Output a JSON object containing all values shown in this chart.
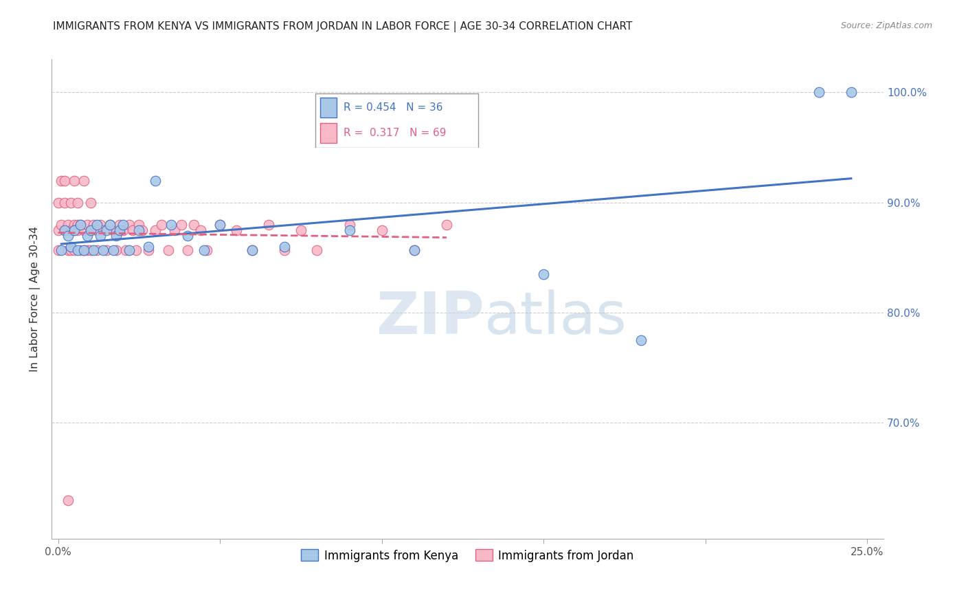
{
  "title": "IMMIGRANTS FROM KENYA VS IMMIGRANTS FROM JORDAN IN LABOR FORCE | AGE 30-34 CORRELATION CHART",
  "source": "Source: ZipAtlas.com",
  "ylabel": "In Labor Force | Age 30-34",
  "ylabel_ticks": [
    "100.0%",
    "90.0%",
    "80.0%",
    "70.0%"
  ],
  "ylabel_tick_values": [
    1.0,
    0.9,
    0.8,
    0.7
  ],
  "xlim": [
    -0.002,
    0.255
  ],
  "ylim": [
    0.595,
    1.03
  ],
  "kenya_color": "#A8C8E8",
  "jordan_color": "#F8B8C8",
  "kenya_edge": "#4472C4",
  "jordan_edge": "#E06080",
  "trend_kenya_color": "#4472C4",
  "trend_jordan_color": "#E06080",
  "kenya_R": 0.454,
  "kenya_N": 36,
  "jordan_R": 0.317,
  "jordan_N": 69,
  "kenya_x": [
    0.001,
    0.002,
    0.003,
    0.004,
    0.005,
    0.006,
    0.007,
    0.008,
    0.009,
    0.01,
    0.011,
    0.012,
    0.013,
    0.014,
    0.015,
    0.016,
    0.017,
    0.018,
    0.019,
    0.02,
    0.022,
    0.025,
    0.028,
    0.03,
    0.035,
    0.04,
    0.045,
    0.05,
    0.06,
    0.07,
    0.09,
    0.11,
    0.15,
    0.18,
    0.235,
    0.245
  ],
  "kenya_y": [
    0.857,
    0.875,
    0.87,
    0.86,
    0.875,
    0.857,
    0.88,
    0.857,
    0.87,
    0.875,
    0.857,
    0.88,
    0.87,
    0.857,
    0.875,
    0.88,
    0.857,
    0.87,
    0.875,
    0.88,
    0.857,
    0.875,
    0.86,
    0.92,
    0.88,
    0.87,
    0.857,
    0.88,
    0.857,
    0.86,
    0.875,
    0.857,
    0.835,
    0.775,
    1.0,
    1.0
  ],
  "jordan_x": [
    0.0,
    0.0,
    0.0,
    0.001,
    0.001,
    0.002,
    0.002,
    0.002,
    0.003,
    0.003,
    0.003,
    0.004,
    0.004,
    0.004,
    0.005,
    0.005,
    0.005,
    0.005,
    0.006,
    0.006,
    0.006,
    0.007,
    0.007,
    0.008,
    0.008,
    0.008,
    0.009,
    0.009,
    0.01,
    0.01,
    0.01,
    0.011,
    0.012,
    0.012,
    0.013,
    0.014,
    0.015,
    0.016,
    0.017,
    0.018,
    0.019,
    0.02,
    0.021,
    0.022,
    0.023,
    0.024,
    0.025,
    0.026,
    0.028,
    0.03,
    0.032,
    0.034,
    0.036,
    0.038,
    0.04,
    0.042,
    0.044,
    0.046,
    0.05,
    0.055,
    0.06,
    0.065,
    0.07,
    0.075,
    0.08,
    0.09,
    0.1,
    0.11,
    0.12
  ],
  "jordan_y": [
    0.875,
    0.9,
    0.857,
    0.92,
    0.88,
    0.9,
    0.875,
    0.92,
    0.88,
    0.857,
    0.63,
    0.9,
    0.875,
    0.857,
    0.92,
    0.88,
    0.875,
    0.857,
    0.9,
    0.88,
    0.875,
    0.88,
    0.857,
    0.92,
    0.875,
    0.857,
    0.88,
    0.857,
    0.9,
    0.875,
    0.857,
    0.88,
    0.875,
    0.857,
    0.88,
    0.875,
    0.857,
    0.88,
    0.875,
    0.857,
    0.88,
    0.875,
    0.857,
    0.88,
    0.875,
    0.857,
    0.88,
    0.875,
    0.857,
    0.875,
    0.88,
    0.857,
    0.875,
    0.88,
    0.857,
    0.88,
    0.875,
    0.857,
    0.88,
    0.875,
    0.857,
    0.88,
    0.857,
    0.875,
    0.857,
    0.88,
    0.875,
    0.857,
    0.88
  ],
  "watermark_zip": "ZIP",
  "watermark_atlas": "atlas",
  "bg_color": "#ffffff",
  "grid_color": "#cccccc",
  "xtick_positions": [
    0.0,
    0.05,
    0.1,
    0.15,
    0.2,
    0.25
  ],
  "xtick_labels": [
    "0.0%",
    "",
    "",
    "",
    "",
    "25.0%"
  ]
}
